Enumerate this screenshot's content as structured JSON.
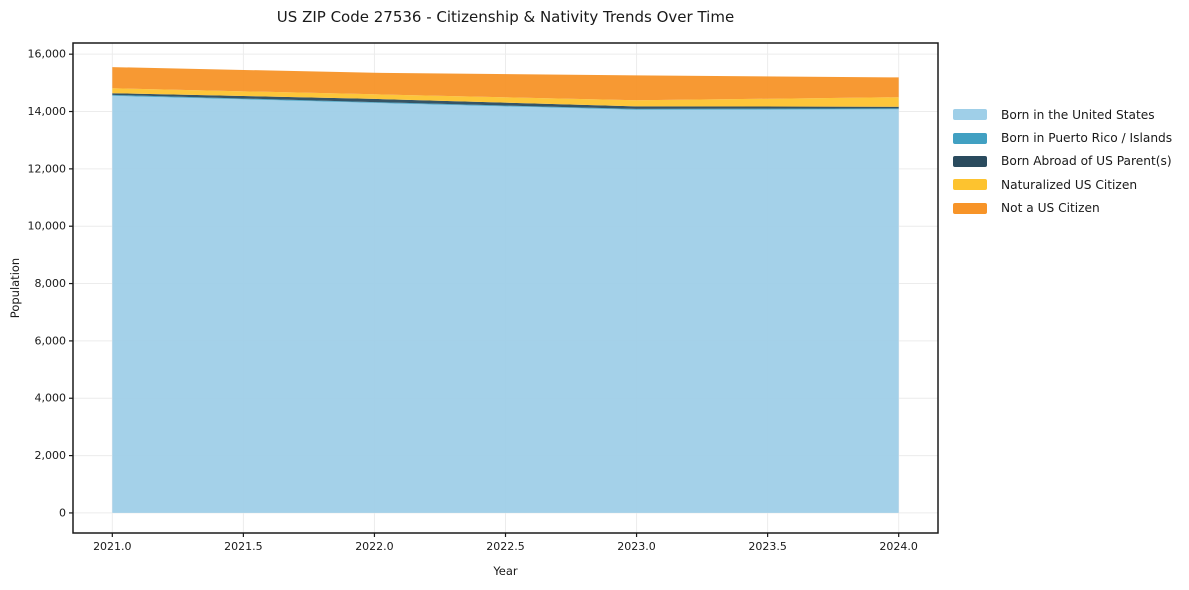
{
  "chart_data": {
    "type": "area",
    "stacked": true,
    "title": "US ZIP Code 27536 - Citizenship & Nativity Trends Over Time",
    "xlabel": "Year",
    "ylabel": "Population",
    "x": [
      2021,
      2022,
      2023,
      2024
    ],
    "series": [
      {
        "name": "Born in the United States",
        "color": "#9FCFE8",
        "values": [
          14550,
          14300,
          14060,
          14080
        ]
      },
      {
        "name": "Born in Puerto Rico / Islands",
        "color": "#41A0C2",
        "values": [
          30,
          30,
          30,
          30
        ]
      },
      {
        "name": "Born Abroad of US Parent(s)",
        "color": "#2A4B5E",
        "values": [
          60,
          110,
          90,
          60
        ]
      },
      {
        "name": "Naturalized US Citizen",
        "color": "#FDC32F",
        "values": [
          170,
          160,
          210,
          330
        ]
      },
      {
        "name": "Not a US Citizen",
        "color": "#F79428",
        "values": [
          740,
          750,
          870,
          690
        ]
      }
    ],
    "totals": [
      15550,
      15350,
      15260,
      15190
    ],
    "xlim": [
      2020.85,
      2024.15
    ],
    "ylim": [
      -700,
      16390
    ],
    "x_ticks": {
      "values": [
        2021.0,
        2021.5,
        2022.0,
        2022.5,
        2023.0,
        2023.5,
        2024.0
      ],
      "labels": [
        "2021.0",
        "2021.5",
        "2022.0",
        "2022.5",
        "2023.0",
        "2023.5",
        "2024.0"
      ]
    },
    "y_ticks": {
      "values": [
        0,
        2000,
        4000,
        6000,
        8000,
        10000,
        12000,
        14000,
        16000
      ],
      "labels": [
        "0",
        "2,000",
        "4,000",
        "6,000",
        "8,000",
        "10,000",
        "12,000",
        "14,000",
        "16,000"
      ]
    },
    "grid": true,
    "legend_position": "right",
    "colors": {
      "grid": "#ECECEC",
      "frame": "#1a1a1a",
      "background": "#ffffff"
    }
  }
}
